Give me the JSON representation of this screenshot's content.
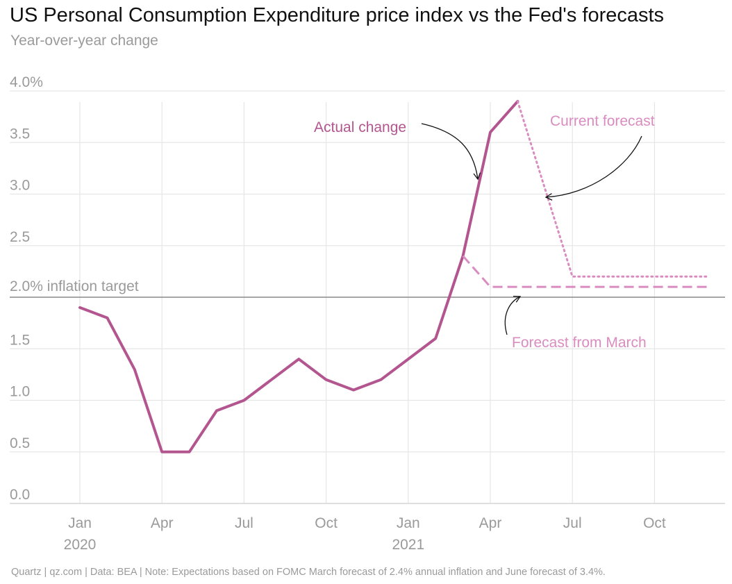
{
  "header": {
    "title": "US Personal Consumption Expenditure price index vs the Fed's forecasts",
    "subtitle": "Year-over-year change"
  },
  "footer": {
    "text": "Quartz | qz.com | Data: BEA | Note: Expectations based on FOMC March forecast of 2.4% annual inflation and June forecast of 3.4%."
  },
  "colors": {
    "actual": "#b3568f",
    "forecast": "#d98cc0",
    "grid": "#e6e6e6",
    "axis_text": "#9a9a9a",
    "target_line": "#888888"
  },
  "chart_data": {
    "type": "line",
    "x_months": [
      "2020-01",
      "2020-02",
      "2020-03",
      "2020-04",
      "2020-05",
      "2020-06",
      "2020-07",
      "2020-08",
      "2020-09",
      "2020-10",
      "2020-11",
      "2020-12",
      "2021-01",
      "2021-02",
      "2021-03",
      "2021-04",
      "2021-05",
      "2021-06",
      "2021-07",
      "2021-08",
      "2021-09",
      "2021-10",
      "2021-11",
      "2021-12"
    ],
    "x_tick_labels": [
      {
        "month": "2020-01",
        "label": "Jan",
        "year": "2020"
      },
      {
        "month": "2020-04",
        "label": "Apr",
        "year": ""
      },
      {
        "month": "2020-07",
        "label": "Jul",
        "year": ""
      },
      {
        "month": "2020-10",
        "label": "Oct",
        "year": ""
      },
      {
        "month": "2021-01",
        "label": "Jan",
        "year": "2021"
      },
      {
        "month": "2021-04",
        "label": "Apr",
        "year": ""
      },
      {
        "month": "2021-07",
        "label": "Jul",
        "year": ""
      },
      {
        "month": "2021-10",
        "label": "Oct",
        "year": ""
      }
    ],
    "y_ticks": [
      {
        "value": 0.0,
        "label": "0.0"
      },
      {
        "value": 0.5,
        "label": "0.5"
      },
      {
        "value": 1.0,
        "label": "1.0"
      },
      {
        "value": 1.5,
        "label": "1.5"
      },
      {
        "value": 2.5,
        "label": "2.5"
      },
      {
        "value": 3.0,
        "label": "3.0"
      },
      {
        "value": 3.5,
        "label": "3.5"
      },
      {
        "value": 4.0,
        "label": "4.0%"
      }
    ],
    "ylim": [
      0,
      4.0
    ],
    "grid": true,
    "series": [
      {
        "key": "actual",
        "style": "solid",
        "points": [
          [
            "2020-01",
            1.9
          ],
          [
            "2020-02",
            1.8
          ],
          [
            "2020-03",
            1.3
          ],
          [
            "2020-04",
            0.5
          ],
          [
            "2020-05",
            0.5
          ],
          [
            "2020-06",
            0.9
          ],
          [
            "2020-07",
            1.0
          ],
          [
            "2020-08",
            1.2
          ],
          [
            "2020-09",
            1.4
          ],
          [
            "2020-10",
            1.2
          ],
          [
            "2020-11",
            1.1
          ],
          [
            "2020-12",
            1.2
          ],
          [
            "2021-01",
            1.4
          ],
          [
            "2021-02",
            1.6
          ],
          [
            "2021-03",
            2.4
          ],
          [
            "2021-04",
            3.6
          ],
          [
            "2021-05",
            3.9
          ]
        ]
      },
      {
        "key": "current_forecast",
        "style": "dotted",
        "points": [
          [
            "2021-05",
            3.9
          ],
          [
            "2021-07",
            2.2
          ],
          [
            "2021-12",
            2.2
          ]
        ]
      },
      {
        "key": "march_forecast",
        "style": "dashed",
        "points": [
          [
            "2021-03",
            2.4
          ],
          [
            "2021-04",
            2.1
          ],
          [
            "2021-12",
            2.1
          ]
        ]
      }
    ],
    "reference_line": {
      "value": 2.0,
      "label": "2.0% inflation target"
    },
    "annotations": [
      {
        "key": "actual",
        "text": "Actual change"
      },
      {
        "key": "current_forecast",
        "text": "Current forecast"
      },
      {
        "key": "march_forecast",
        "text": "Forecast from March"
      }
    ]
  }
}
